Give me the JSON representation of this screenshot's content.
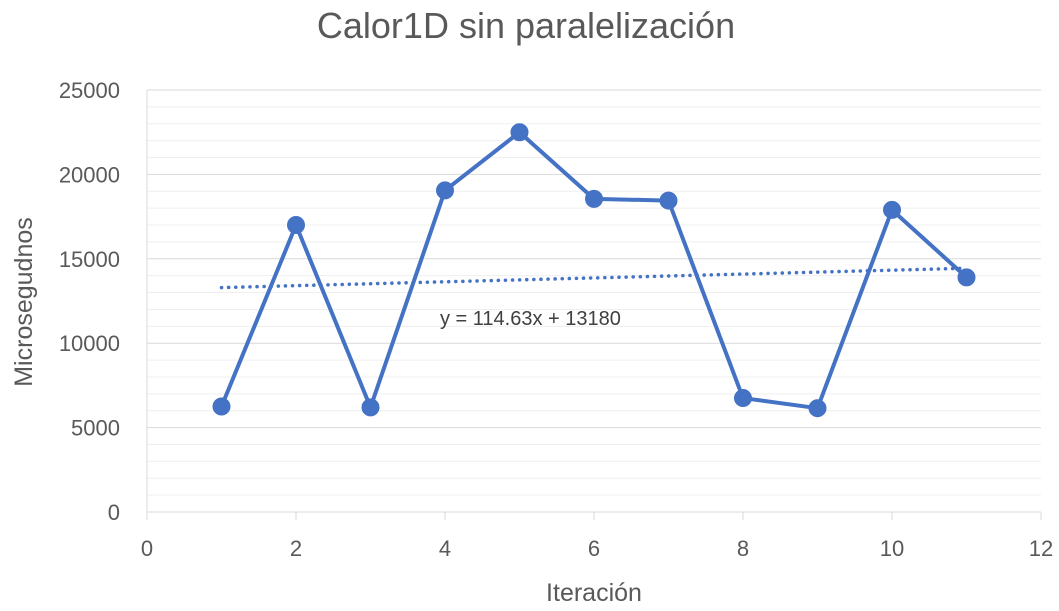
{
  "chart_data": {
    "type": "scatter",
    "title": "Calor1D sin paralelización",
    "xlabel": "Iteración",
    "ylabel": "Microsegudnos",
    "xlim": [
      0,
      12
    ],
    "ylim": [
      0,
      25000
    ],
    "x_ticks": [
      0,
      2,
      4,
      6,
      8,
      10,
      12
    ],
    "y_ticks": [
      0,
      5000,
      10000,
      15000,
      20000,
      25000
    ],
    "grid": true,
    "series": [
      {
        "x": [
          1,
          2,
          3,
          4,
          5,
          6,
          7,
          8,
          9,
          10,
          11
        ],
        "y": [
          6250,
          17000,
          6200,
          19050,
          22500,
          18550,
          18450,
          6750,
          6150,
          17900,
          13900
        ],
        "color": "#4472C4",
        "style": "line-markers"
      }
    ],
    "trendline": {
      "type": "linear",
      "slope": 114.63,
      "intercept": 13180,
      "x_range": [
        1,
        11
      ],
      "style": "dotted",
      "color": "#4472C4",
      "label": "y = 114.63x + 13180"
    }
  }
}
